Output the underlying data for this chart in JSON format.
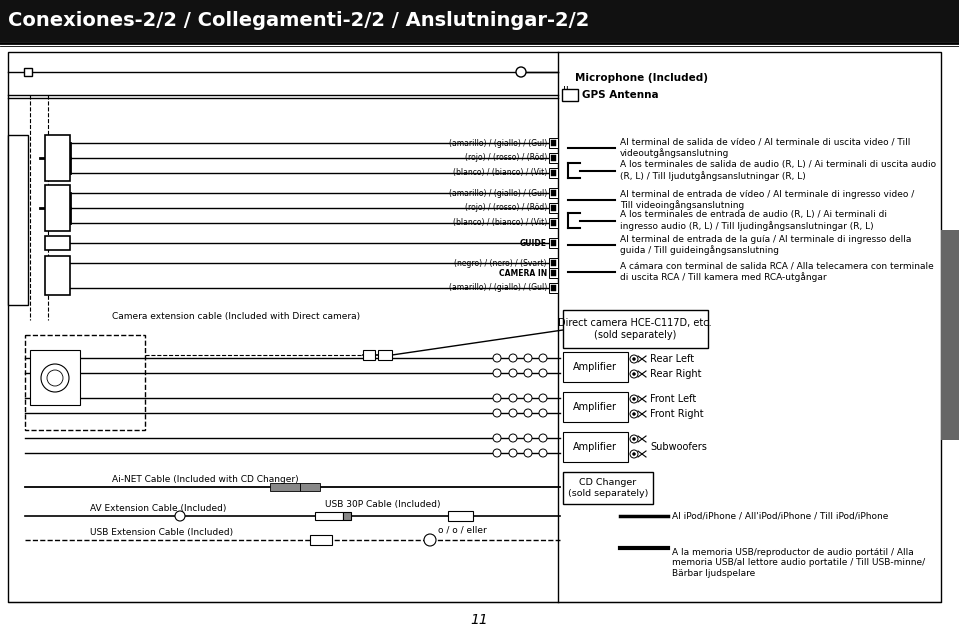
{
  "title": "Conexiones-2/2 / Collegamenti-2/2 / Anslutningar-2/2",
  "page_number": "11",
  "bg_color": "#ffffff",
  "header_bg": "#111111",
  "header_text_color": "#ffffff",
  "right_tab_color": "#666666",
  "connector_labels": [
    "(amarillo) / (giallo) / (Gul)",
    "(rojo) / (rosso) / (Röd)",
    "(blanco) / (bianco) / (Vit)",
    "(amarillo) / (giallo) / (Gul)",
    "(rojo) / (rosso) / (Röd)",
    "(blanco) / (bianco) / (Vit)",
    "GUIDE",
    "(negro) / (nero) / (Svart)",
    "CAMERA IN",
    "(amarillo) / (giallo) / (Gul)"
  ],
  "connector_bold": [
    false,
    false,
    false,
    false,
    false,
    false,
    true,
    false,
    true,
    false
  ],
  "right_annotations": [
    {
      "type": "line",
      "text": "Al terminal de salida de vídeo / Al terminale di uscita video / Till\nvideoutgångsanslutning"
    },
    {
      "type": "bracket",
      "text": "A los terminales de salida de audio (R, L) / Ai terminali di uscita audio\n(R, L) / Till ljudutgångsanslutningar (R, L)"
    },
    {
      "type": "line",
      "text": "Al terminal de entrada de vídeo / Al terminale di ingresso video /\nTill videoingångsanslutning"
    },
    {
      "type": "bracket",
      "text": "A los terminales de entrada de audio (R, L) / Ai terminali di\ningresso audio (R, L) / Till ljudingångsanslutningar (R, L)"
    },
    {
      "type": "line",
      "text": "Al terminal de entrada de la guía / Al terminale di ingresso della\nguida / Till guideingångsanslutning"
    },
    {
      "type": "line",
      "text": "A cámara con terminal de salida RCA / Alla telecamera con terminale\ndi uscita RCA / Till kamera med RCA-utgångar"
    }
  ],
  "amp_rows": [
    {
      "label": "Amplifier",
      "ch1": "Rear Left",
      "ch2": "Rear Right"
    },
    {
      "label": "Amplifier",
      "ch1": "Front Left",
      "ch2": "Front Right"
    },
    {
      "label": "Amplifier",
      "ch1": "Subwoofers",
      "ch2": null
    }
  ],
  "ipod_text": "Al iPod/iPhone / All'iPod/iPhone / Till iPod/iPhone",
  "usb_text": "A la memoria USB/reproductor de audio portátil / Alla\nmemoria USB/al lettore audio portatile / Till USB-minne/\nBärbar ljudspelare",
  "camera_text": "Camera extension cable (Included with Direct camera)",
  "direct_cam_text": "Direct camera HCE-C117D, etc.\n(sold separately)",
  "cd_changer_text": "CD Changer\n(sold separately)",
  "ainet_text": "Ai-NET Cable (Included with CD Changer)",
  "av_ext_text": "AV Extension Cable (Included)",
  "usb30p_text": "USB 30P Cable (Included)",
  "usb_ext_text": "USB Extension Cable (Included)",
  "eller_text": "o / o / eller",
  "mic_text": "Microphone (Included)",
  "gps_text": "GPS Antenna"
}
